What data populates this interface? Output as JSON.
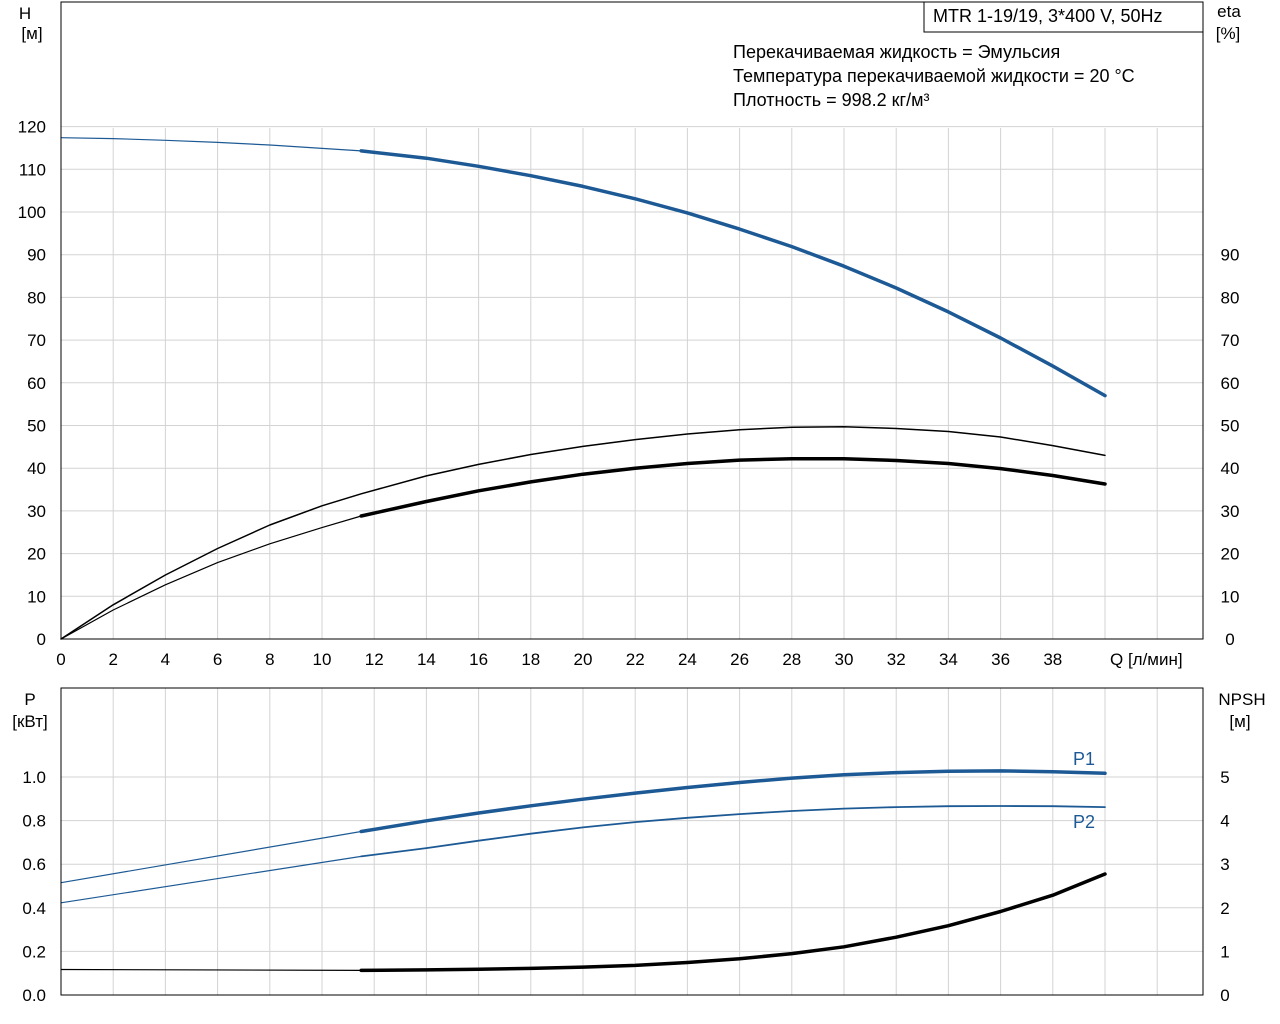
{
  "colors": {
    "blue": "#1d5a95",
    "black": "#000000",
    "grid": "#d3d3d3"
  },
  "header": {
    "title": "MTR 1-19/19, 3*400 V, 50Hz",
    "info": [
      "Перекачиваемая жидкость = Эмульсия",
      "Температура перекачиваемой жидкости = 20 °C",
      "Плотность = 998.2 кг/м³"
    ]
  },
  "labels": {
    "h_top": "H",
    "h_unit": "[м]",
    "eta_top": "eta",
    "eta_unit": "[%]",
    "q_label": "Q [л/мин]",
    "p_top": "P",
    "p_unit": "[кВт]",
    "npsh_top": "NPSH",
    "npsh_unit": "[м]"
  },
  "chart_data": [
    {
      "type": "line",
      "x_ticks": [
        "0",
        "2",
        "4",
        "6",
        "8",
        "10",
        "12",
        "14",
        "16",
        "18",
        "20",
        "22",
        "24",
        "26",
        "28",
        "30",
        "32",
        "34",
        "36",
        "38"
      ],
      "xlabel": "Q [л/мин]",
      "xlim": [
        0,
        41.5
      ],
      "left_axis": {
        "label": "H [м]",
        "ticks": [
          "0",
          "10",
          "20",
          "30",
          "40",
          "50",
          "60",
          "70",
          "80",
          "90",
          "100",
          "110",
          "120"
        ],
        "ylim": [
          0,
          140
        ]
      },
      "right_axis": {
        "label": "eta [%]",
        "ticks": [
          "0",
          "10",
          "20",
          "30",
          "40",
          "50",
          "60",
          "70",
          "80",
          "90"
        ],
        "ylim": [
          0,
          140
        ]
      },
      "series": [
        {
          "color": "blue",
          "width": 3.5,
          "x": [
            11.5,
            14,
            16,
            18,
            20,
            22,
            24,
            26,
            28,
            30,
            32,
            34,
            36,
            38,
            40
          ],
          "y": [
            114.3,
            112.6,
            110.7,
            108.5,
            106.0,
            103.1,
            99.8,
            96.0,
            91.9,
            87.3,
            82.2,
            76.6,
            70.5,
            63.9,
            57.0
          ]
        },
        {
          "color": "blue",
          "width": 1.2,
          "x": [
            0,
            2,
            4,
            6,
            8,
            10,
            11.5
          ],
          "y": [
            117.4,
            117.2,
            116.8,
            116.3,
            115.7,
            114.9,
            114.3
          ]
        },
        {
          "color": "black",
          "width": 1.5,
          "x": [
            0,
            2,
            4,
            6,
            8,
            10,
            11.5,
            14,
            16,
            18,
            20,
            22,
            24,
            26,
            28,
            30,
            32,
            34,
            36,
            38,
            40
          ],
          "y": [
            0,
            8.0,
            15.0,
            21.2,
            26.7,
            31.2,
            34.0,
            38.2,
            40.9,
            43.2,
            45.1,
            46.7,
            48.0,
            49.0,
            49.6,
            49.7,
            49.3,
            48.6,
            47.3,
            45.3,
            43.0
          ]
        },
        {
          "color": "black",
          "width": 3.5,
          "x": [
            11.5,
            14,
            16,
            18,
            20,
            22,
            24,
            26,
            28,
            30,
            32,
            34,
            36,
            38,
            40
          ],
          "y": [
            28.8,
            32.2,
            34.7,
            36.8,
            38.6,
            40.0,
            41.1,
            41.9,
            42.2,
            42.2,
            41.8,
            41.1,
            39.9,
            38.3,
            36.3
          ]
        },
        {
          "color": "black",
          "width": 1.2,
          "x": [
            0,
            2,
            4,
            6,
            8,
            10,
            11.5
          ],
          "y": [
            0,
            6.8,
            12.7,
            17.9,
            22.3,
            26.1,
            28.8
          ]
        }
      ]
    },
    {
      "type": "line",
      "x_ticks": [],
      "xlim": [
        0,
        41.5
      ],
      "left_axis": {
        "label": "P [кВт]",
        "ticks": [
          "0.0",
          "0.2",
          "0.4",
          "0.6",
          "0.8",
          "1.0"
        ],
        "ylim": [
          0,
          1.2
        ]
      },
      "right_axis": {
        "label": "NPSH [м]",
        "ticks": [
          "0",
          "1",
          "2",
          "3",
          "4",
          "5"
        ],
        "ylim": [
          0,
          6
        ]
      },
      "series": [
        {
          "name": "P1",
          "color": "blue",
          "width": 3.5,
          "x": [
            11.5,
            14,
            16,
            18,
            20,
            22,
            24,
            26,
            28,
            30,
            32,
            34,
            36,
            38,
            40
          ],
          "y": [
            0.75,
            0.799,
            0.835,
            0.868,
            0.898,
            0.926,
            0.952,
            0.975,
            0.995,
            1.01,
            1.02,
            1.026,
            1.028,
            1.024,
            1.017
          ]
        },
        {
          "color": "blue",
          "width": 1.2,
          "x": [
            0,
            11.5
          ],
          "y": [
            0.515,
            0.75
          ]
        },
        {
          "name": "P2",
          "color": "blue",
          "width": 1.8,
          "x": [
            11.5,
            14,
            16,
            18,
            20,
            22,
            24,
            26,
            28,
            30,
            32,
            34,
            36,
            38,
            40
          ],
          "y": [
            0.636,
            0.674,
            0.708,
            0.74,
            0.769,
            0.793,
            0.813,
            0.83,
            0.844,
            0.855,
            0.862,
            0.866,
            0.867,
            0.866,
            0.862
          ]
        },
        {
          "color": "blue",
          "width": 1.2,
          "x": [
            0,
            11.5
          ],
          "y": [
            0.423,
            0.636
          ]
        },
        {
          "color": "black",
          "width": 3.5,
          "x": [
            11.5,
            14,
            16,
            18,
            20,
            22,
            24,
            26,
            28,
            30,
            32,
            34,
            36,
            38,
            40
          ],
          "y": [
            0.113,
            0.115,
            0.118,
            0.122,
            0.128,
            0.136,
            0.149,
            0.166,
            0.19,
            0.221,
            0.265,
            0.318,
            0.383,
            0.458,
            0.555
          ]
        },
        {
          "color": "black",
          "width": 1.2,
          "x": [
            0,
            11.5
          ],
          "y": [
            0.117,
            0.113
          ]
        }
      ]
    }
  ]
}
